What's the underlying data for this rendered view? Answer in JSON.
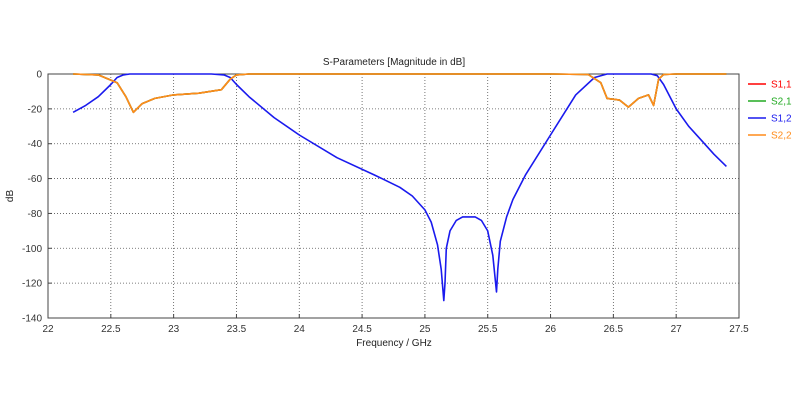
{
  "chart_data": {
    "type": "line",
    "title": "S-Parameters [Magnitude in dB]",
    "xlabel": "Frequency / GHz",
    "ylabel": "dB",
    "xlim": [
      22,
      27.5
    ],
    "ylim": [
      -140,
      0
    ],
    "xticks": [
      22,
      22.5,
      23,
      23.5,
      24,
      24.5,
      25,
      25.5,
      26,
      26.5,
      27,
      27.5
    ],
    "xtick_labels": [
      "22",
      "22.5",
      "23",
      "23.5",
      "24",
      "24.5",
      "25",
      "25.5",
      "26",
      "26.5",
      "27",
      "27.5"
    ],
    "yticks": [
      0,
      -20,
      -40,
      -60,
      -80,
      -100,
      -120,
      -140
    ],
    "ytick_labels": [
      "0",
      "-20",
      "-40",
      "-60",
      "-80",
      "-100",
      "-120",
      "-140"
    ],
    "grid": true,
    "legend_position": "right",
    "series": [
      {
        "name": "S1,1",
        "color": "#ff0000",
        "x": [
          22.2,
          22.4,
          22.55,
          22.62,
          22.68,
          22.75,
          22.85,
          23.0,
          23.2,
          23.38,
          23.45,
          23.5,
          23.6,
          24.0,
          25.0,
          26.0,
          26.3,
          26.4,
          26.45,
          26.55,
          26.62,
          26.7,
          26.78,
          26.82,
          26.86,
          26.9,
          27.0,
          27.4
        ],
        "y": [
          0,
          -0.5,
          -5,
          -13,
          -22,
          -17,
          -14,
          -12,
          -11,
          -9,
          -3,
          -0.5,
          0,
          0,
          0,
          0,
          -0.3,
          -5,
          -14,
          -15,
          -19,
          -14,
          -12,
          -18,
          -3,
          -0.3,
          0,
          0
        ]
      },
      {
        "name": "S2,1",
        "color": "#22aa22",
        "x": [
          22.2,
          22.4,
          22.55,
          22.62,
          22.68,
          22.75,
          22.85,
          23.0,
          23.2,
          23.38,
          23.45,
          23.5,
          23.6,
          24.0,
          25.0,
          26.0,
          26.3,
          26.4,
          26.45,
          26.55,
          26.62,
          26.7,
          26.78,
          26.82,
          26.86,
          26.9,
          27.0,
          27.4
        ],
        "y": [
          0,
          -0.5,
          -5,
          -13,
          -22,
          -17,
          -14,
          -12,
          -11,
          -9,
          -3,
          -0.5,
          0,
          0,
          0,
          0,
          -0.3,
          -5,
          -14,
          -15,
          -19,
          -14,
          -12,
          -18,
          -3,
          -0.3,
          0,
          0
        ]
      },
      {
        "name": "S1,2",
        "color": "#1a1aee",
        "x": [
          22.2,
          22.3,
          22.4,
          22.5,
          22.55,
          22.6,
          22.65,
          22.7,
          23.0,
          23.3,
          23.4,
          23.45,
          23.5,
          23.6,
          23.8,
          24.0,
          24.3,
          24.6,
          24.8,
          24.9,
          25.0,
          25.05,
          25.1,
          25.13,
          25.15,
          25.16,
          25.17,
          25.2,
          25.25,
          25.3,
          25.4,
          25.45,
          25.5,
          25.54,
          25.57,
          25.58,
          25.6,
          25.65,
          25.7,
          25.8,
          26.0,
          26.2,
          26.35,
          26.45,
          26.5,
          26.6,
          26.7,
          26.8,
          26.85,
          26.9,
          27.0,
          27.1,
          27.2,
          27.3,
          27.4
        ],
        "y": [
          -22,
          -18,
          -13,
          -6,
          -2,
          -0.5,
          0,
          0,
          0,
          0,
          -0.5,
          -2,
          -6,
          -13,
          -25,
          -35,
          -48,
          -58,
          -65,
          -70,
          -78,
          -85,
          -98,
          -112,
          -130,
          -120,
          -100,
          -90,
          -84,
          -82,
          -82,
          -84,
          -90,
          -104,
          -125,
          -112,
          -96,
          -82,
          -72,
          -58,
          -35,
          -12,
          -2,
          0,
          0,
          0,
          0,
          0,
          -1,
          -6,
          -20,
          -30,
          -38,
          -46,
          -53
        ]
      },
      {
        "name": "S2,2",
        "color": "#ff8c1a",
        "x": [
          22.2,
          22.4,
          22.55,
          22.62,
          22.68,
          22.75,
          22.85,
          23.0,
          23.2,
          23.38,
          23.45,
          23.5,
          23.6,
          24.0,
          25.0,
          26.0,
          26.3,
          26.4,
          26.45,
          26.55,
          26.62,
          26.7,
          26.78,
          26.82,
          26.86,
          26.9,
          27.0,
          27.4
        ],
        "y": [
          0,
          -0.5,
          -5,
          -13,
          -22,
          -17,
          -14,
          -12,
          -11,
          -9,
          -3,
          -0.5,
          0,
          0,
          0,
          0,
          -0.3,
          -5,
          -14,
          -15,
          -19,
          -14,
          -12,
          -18,
          -3,
          -0.3,
          0,
          0
        ]
      }
    ]
  }
}
